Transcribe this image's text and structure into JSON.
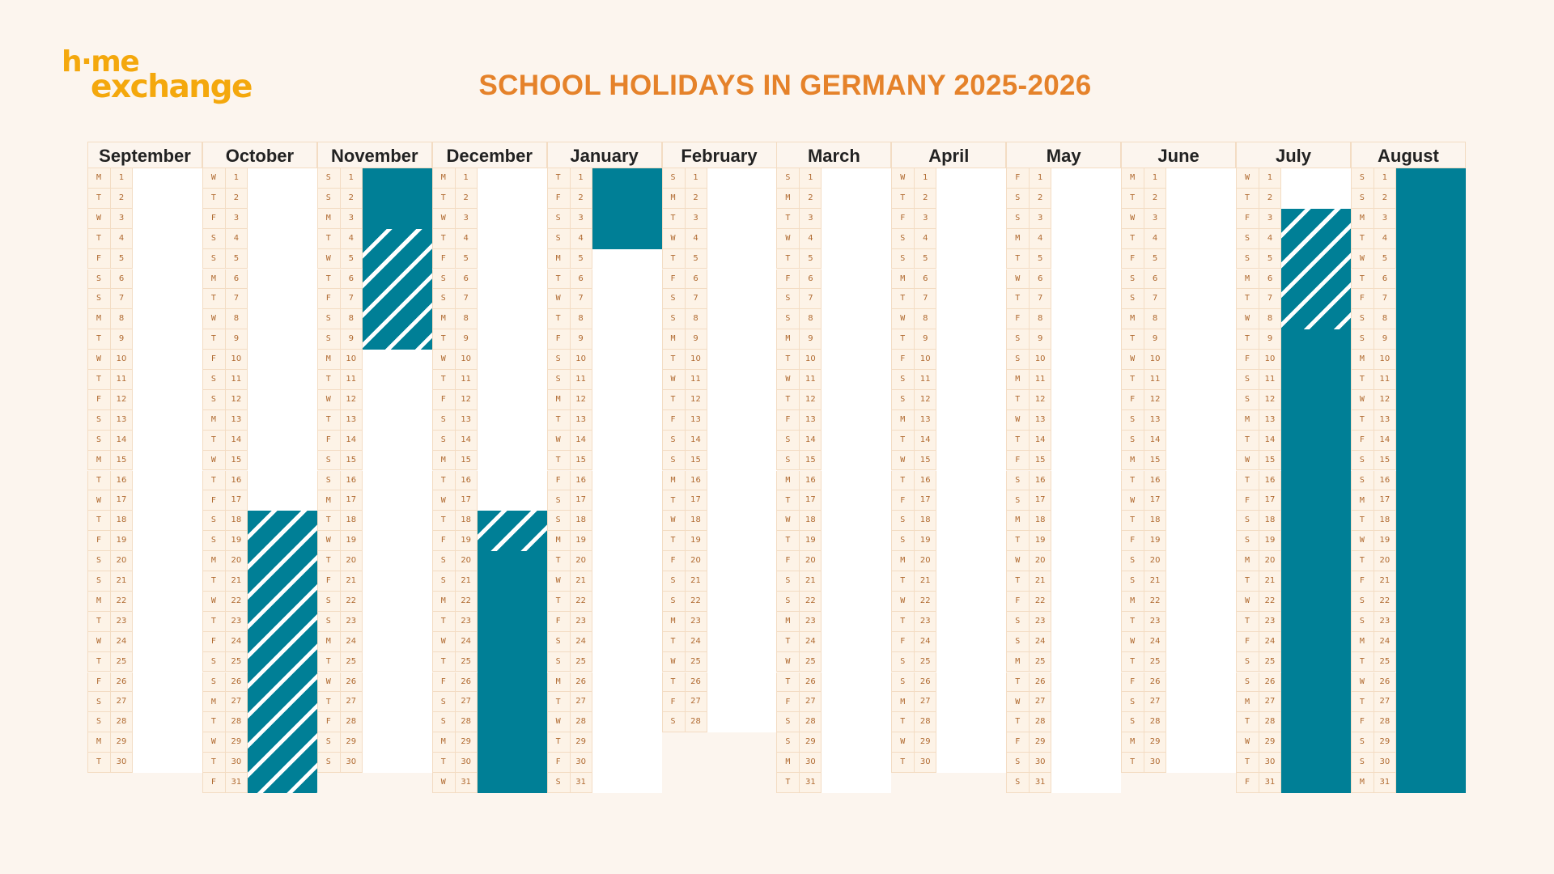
{
  "logo": {
    "line1": "h·me",
    "line2": "exchange"
  },
  "title": "SCHOOL HOLIDAYS IN GERMANY 2025-2026",
  "colors": {
    "background": "#fcf5ee",
    "holiday": "#007f96",
    "title": "#e5822a",
    "logo": "#f4a80d"
  },
  "legend_types": {
    "solid": "holiday",
    "hatch": "partial holiday (hatched)"
  },
  "months": [
    {
      "name": "September",
      "weekdays": "MTWTFSSMTWTFSSMTWTFSSMTWTFSSMT",
      "holidays": []
    },
    {
      "name": "October",
      "weekdays": "WTFSSMTWTFSSMTWTFSSMTWTFSSMTWTF",
      "holidays": [
        {
          "from": 18,
          "to": 31,
          "type": "hatch"
        }
      ]
    },
    {
      "name": "November",
      "weekdays": "SSMTWTFSSMTWTFSSMTWTFSSMTWTFSS",
      "holidays": [
        {
          "from": 1,
          "to": 3,
          "type": "solid"
        },
        {
          "from": 4,
          "to": 9,
          "type": "hatch"
        }
      ]
    },
    {
      "name": "December",
      "weekdays": "MTWTFSSMTWTFSSMTWTFSSMTWTFSSMTW",
      "holidays": [
        {
          "from": 18,
          "to": 19,
          "type": "hatch"
        },
        {
          "from": 20,
          "to": 31,
          "type": "solid"
        }
      ]
    },
    {
      "name": "January",
      "weekdays": "TFSSMTWTFSSMTWTFSSMTWTFSSMTWTFS",
      "holidays": [
        {
          "from": 1,
          "to": 4,
          "type": "solid"
        }
      ]
    },
    {
      "name": "February",
      "weekdays": "SMTWTFSSMTWTFSSMTWTFSSMTWTFS",
      "holidays": []
    },
    {
      "name": "March",
      "weekdays": "SMTWTFSSMTWTFSSMTWTFSSMTWTFSSMT",
      "holidays": []
    },
    {
      "name": "April",
      "weekdays": "WTFSSMTWTFSSMTWTFSSMTWTFSSMTWT",
      "holidays": []
    },
    {
      "name": "May",
      "weekdays": "FSSMTWTFSSMTWTFSSMTWTFSSMTWTFSS",
      "holidays": []
    },
    {
      "name": "June",
      "weekdays": "MTWTFSSMTWTFSSMTWTFSSMTWTFSSMT",
      "holidays": []
    },
    {
      "name": "July",
      "weekdays": "WTFSSMTWTFSSMTWTFSSMTWTFSSMTWTF",
      "holidays": [
        {
          "from": 3,
          "to": 8,
          "type": "hatch"
        },
        {
          "from": 9,
          "to": 31,
          "type": "solid"
        }
      ]
    },
    {
      "name": "August",
      "weekdays": "SSMTWTFSSMTWTFSSMTWTFSSMTWTFSSM",
      "holidays": [
        {
          "from": 1,
          "to": 31,
          "type": "solid"
        }
      ]
    }
  ]
}
